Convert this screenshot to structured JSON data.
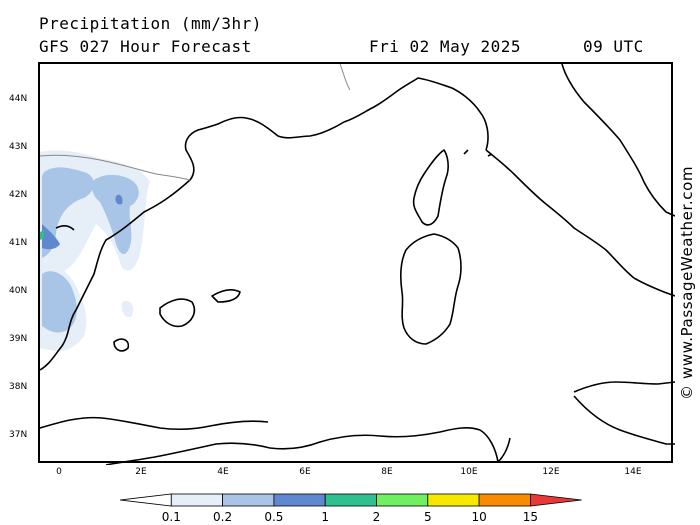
{
  "header": {
    "title": "Precipitation (mm/3hr)",
    "subtitle": "GFS 027 Hour Forecast",
    "datetime": "Fri 02 May 2025",
    "timezone": "09 UTC"
  },
  "credit": "© www.PassageWeather.com",
  "map": {
    "lat_labels": [
      "44N",
      "43N",
      "42N",
      "41N",
      "40N",
      "39N",
      "38N",
      "37N"
    ],
    "lon_labels": [
      "0",
      "2E",
      "4E",
      "6E",
      "8E",
      "10E",
      "12E",
      "14E"
    ]
  },
  "legend": {
    "labels": [
      "0.1",
      "0.2",
      "0.5",
      "1",
      "2",
      "5",
      "10",
      "15"
    ],
    "colors": [
      "#ffffff",
      "#e6eef8",
      "#a8c4e6",
      "#6088d0",
      "#30c090",
      "#70f060",
      "#f8e800",
      "#f88c00",
      "#e83838"
    ]
  }
}
